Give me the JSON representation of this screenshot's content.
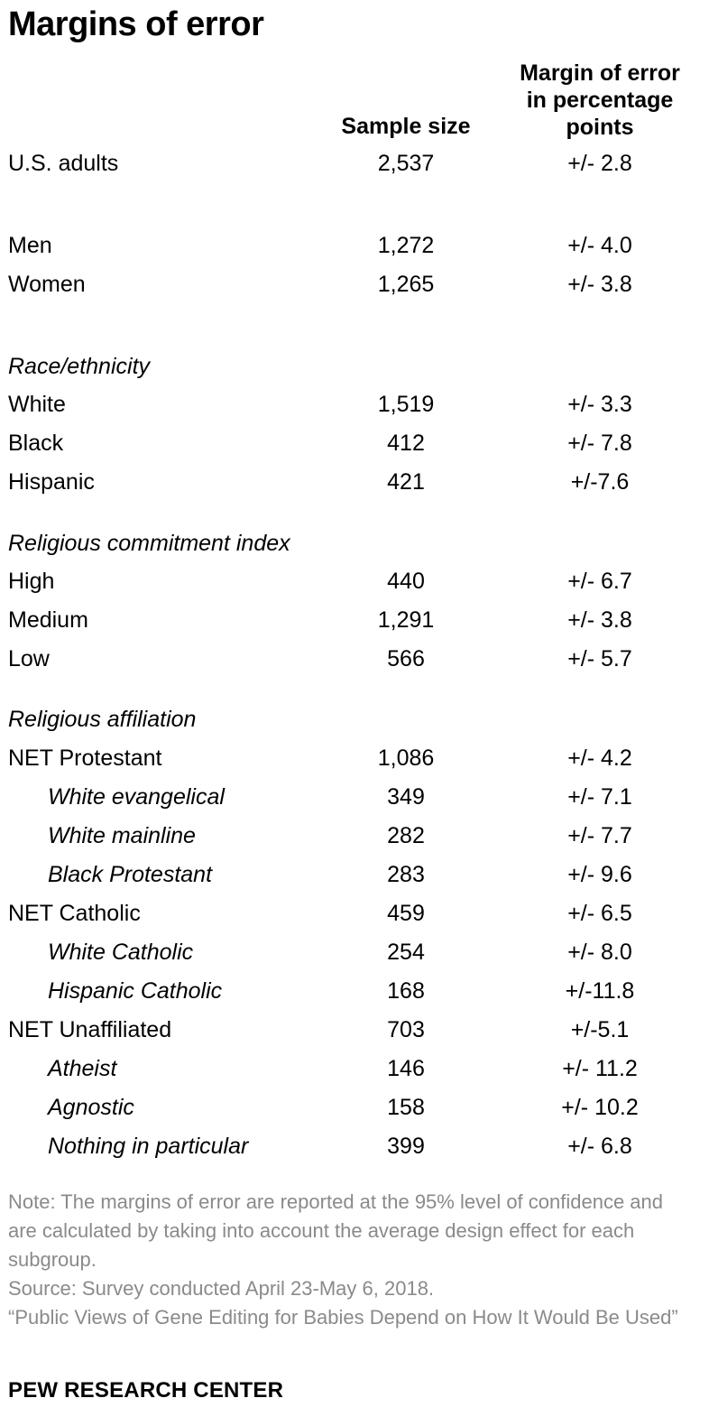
{
  "title": "Margins of error",
  "chart_data": {
    "type": "table",
    "columns": [
      "",
      "Sample size",
      "Margin of error in percentage points"
    ],
    "column_header_lines": {
      "sample": [
        "Sample size"
      ],
      "moe": [
        "Margin of error",
        "in percentage",
        "points"
      ]
    },
    "rows": [
      {
        "label": "U.S. adults",
        "kind": "row",
        "n": "2,537",
        "moe": "+/- 2.8"
      },
      {
        "label": "Men",
        "kind": "row",
        "n": "1,272",
        "moe": "+/- 4.0"
      },
      {
        "label": "Women",
        "kind": "row",
        "n": "1,265",
        "moe": "+/- 3.8"
      },
      {
        "label": "Race/ethnicity",
        "kind": "section",
        "n": "",
        "moe": ""
      },
      {
        "label": "White",
        "kind": "row",
        "n": "1,519",
        "moe": "+/- 3.3"
      },
      {
        "label": "Black",
        "kind": "row",
        "n": "412",
        "moe": "+/- 7.8"
      },
      {
        "label": "Hispanic",
        "kind": "row",
        "n": "421",
        "moe": "+/-7.6"
      },
      {
        "label": "Religious commitment index",
        "kind": "section",
        "n": "",
        "moe": ""
      },
      {
        "label": "High",
        "kind": "row",
        "n": "440",
        "moe": "+/- 6.7"
      },
      {
        "label": "Medium",
        "kind": "row",
        "n": "1,291",
        "moe": "+/- 3.8"
      },
      {
        "label": "Low",
        "kind": "row",
        "n": "566",
        "moe": "+/- 5.7"
      },
      {
        "label": "Religious affiliation",
        "kind": "section",
        "n": "",
        "moe": ""
      },
      {
        "label": "NET Protestant",
        "kind": "row",
        "n": "1,086",
        "moe": "+/- 4.2"
      },
      {
        "label": "White evangelical",
        "kind": "indent",
        "n": "349",
        "moe": "+/- 7.1"
      },
      {
        "label": "White mainline",
        "kind": "indent",
        "n": "282",
        "moe": "+/- 7.7"
      },
      {
        "label": "Black Protestant",
        "kind": "indent",
        "n": "283",
        "moe": "+/- 9.6"
      },
      {
        "label": "NET Catholic",
        "kind": "row",
        "n": "459",
        "moe": "+/- 6.5"
      },
      {
        "label": "White Catholic",
        "kind": "indent",
        "n": "254",
        "moe": "+/- 8.0"
      },
      {
        "label": "Hispanic Catholic",
        "kind": "indent",
        "n": "168",
        "moe": "+/-11.8"
      },
      {
        "label": "NET Unaffiliated",
        "kind": "row",
        "n": "703",
        "moe": "+/-5.1"
      },
      {
        "label": "Atheist",
        "kind": "indent",
        "n": "146",
        "moe": "+/- 11.2"
      },
      {
        "label": "Agnostic",
        "kind": "indent",
        "n": "158",
        "moe": "+/- 10.2"
      },
      {
        "label": "Nothing in particular",
        "kind": "indent",
        "n": "399",
        "moe": "+/- 6.8"
      }
    ]
  },
  "notes": {
    "note": "Note: The margins of error are reported at the 95% level of confidence and are calculated by taking into account the average design effect for each subgroup.",
    "source": "Source: Survey conducted April 23-May 6, 2018.",
    "report": "“Public Views of Gene Editing for Babies Depend on How It Would Be Used”"
  },
  "brand": "PEW RESEARCH CENTER"
}
